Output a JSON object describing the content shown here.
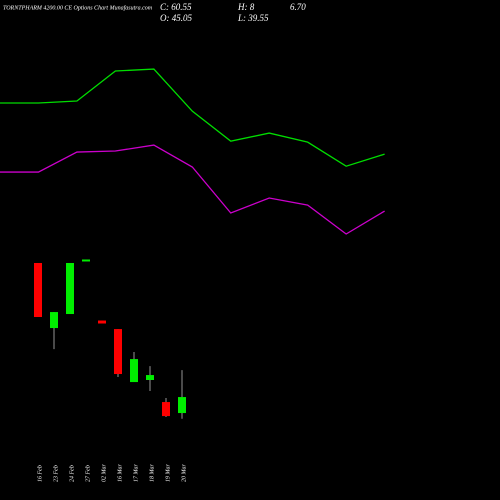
{
  "chart_data": {
    "type": "candlestick",
    "title": "TORNTPHARM 4200.00 CE Options Chart Munafasutra.com",
    "info": {
      "close": "C: 60.55",
      "high": "H: 8",
      "high_rest": "6.70",
      "open": "O: 45.05",
      "low": "L: 39.55"
    },
    "categories": [
      "16 Feb",
      "23 Feb",
      "24 Feb",
      "27 Feb",
      "02 Mar",
      "16 Mar",
      "17 Mar",
      "18 Mar",
      "19 Mar",
      "20 Mar"
    ],
    "open": [
      190.6,
      127.5,
      141.1,
      193.0,
      134.8,
      126.5,
      75.1,
      77.1,
      55.7,
      45.05
    ],
    "high": [
      190.6,
      143.0,
      190.6,
      194.0,
      134.8,
      126.5,
      104.2,
      90.6,
      59.6,
      86.7
    ],
    "low": [
      138.2,
      107.1,
      141.1,
      193.0,
      131.9,
      80.0,
      75.1,
      66.4,
      41.2,
      39.55
    ],
    "close": [
      138.2,
      143.0,
      190.6,
      194.0,
      131.9,
      82.9,
      97.4,
      81.9,
      42.1,
      60.55
    ],
    "up_color": "#00ee00",
    "down_color": "#ff0000",
    "ylim": [
      18.9,
      426.3
    ],
    "x": [
      0,
      1,
      2,
      3,
      4,
      5,
      6,
      7,
      8,
      9,
      10
    ],
    "xlim": [
      0,
      13
    ],
    "series": [
      {
        "color": "#00dd00",
        "values": [
          345.8,
          345.8,
          347.7,
          376.8,
          378.7,
          337.9,
          308.8,
          316.6,
          307.8,
          284.5,
          296.2
        ]
      },
      {
        "color": "#cc00cc",
        "values": [
          278.8,
          278.8,
          298.2,
          299.2,
          305.0,
          283.7,
          239.1,
          253.6,
          246.8,
          218.7,
          241.0
        ]
      }
    ]
  }
}
